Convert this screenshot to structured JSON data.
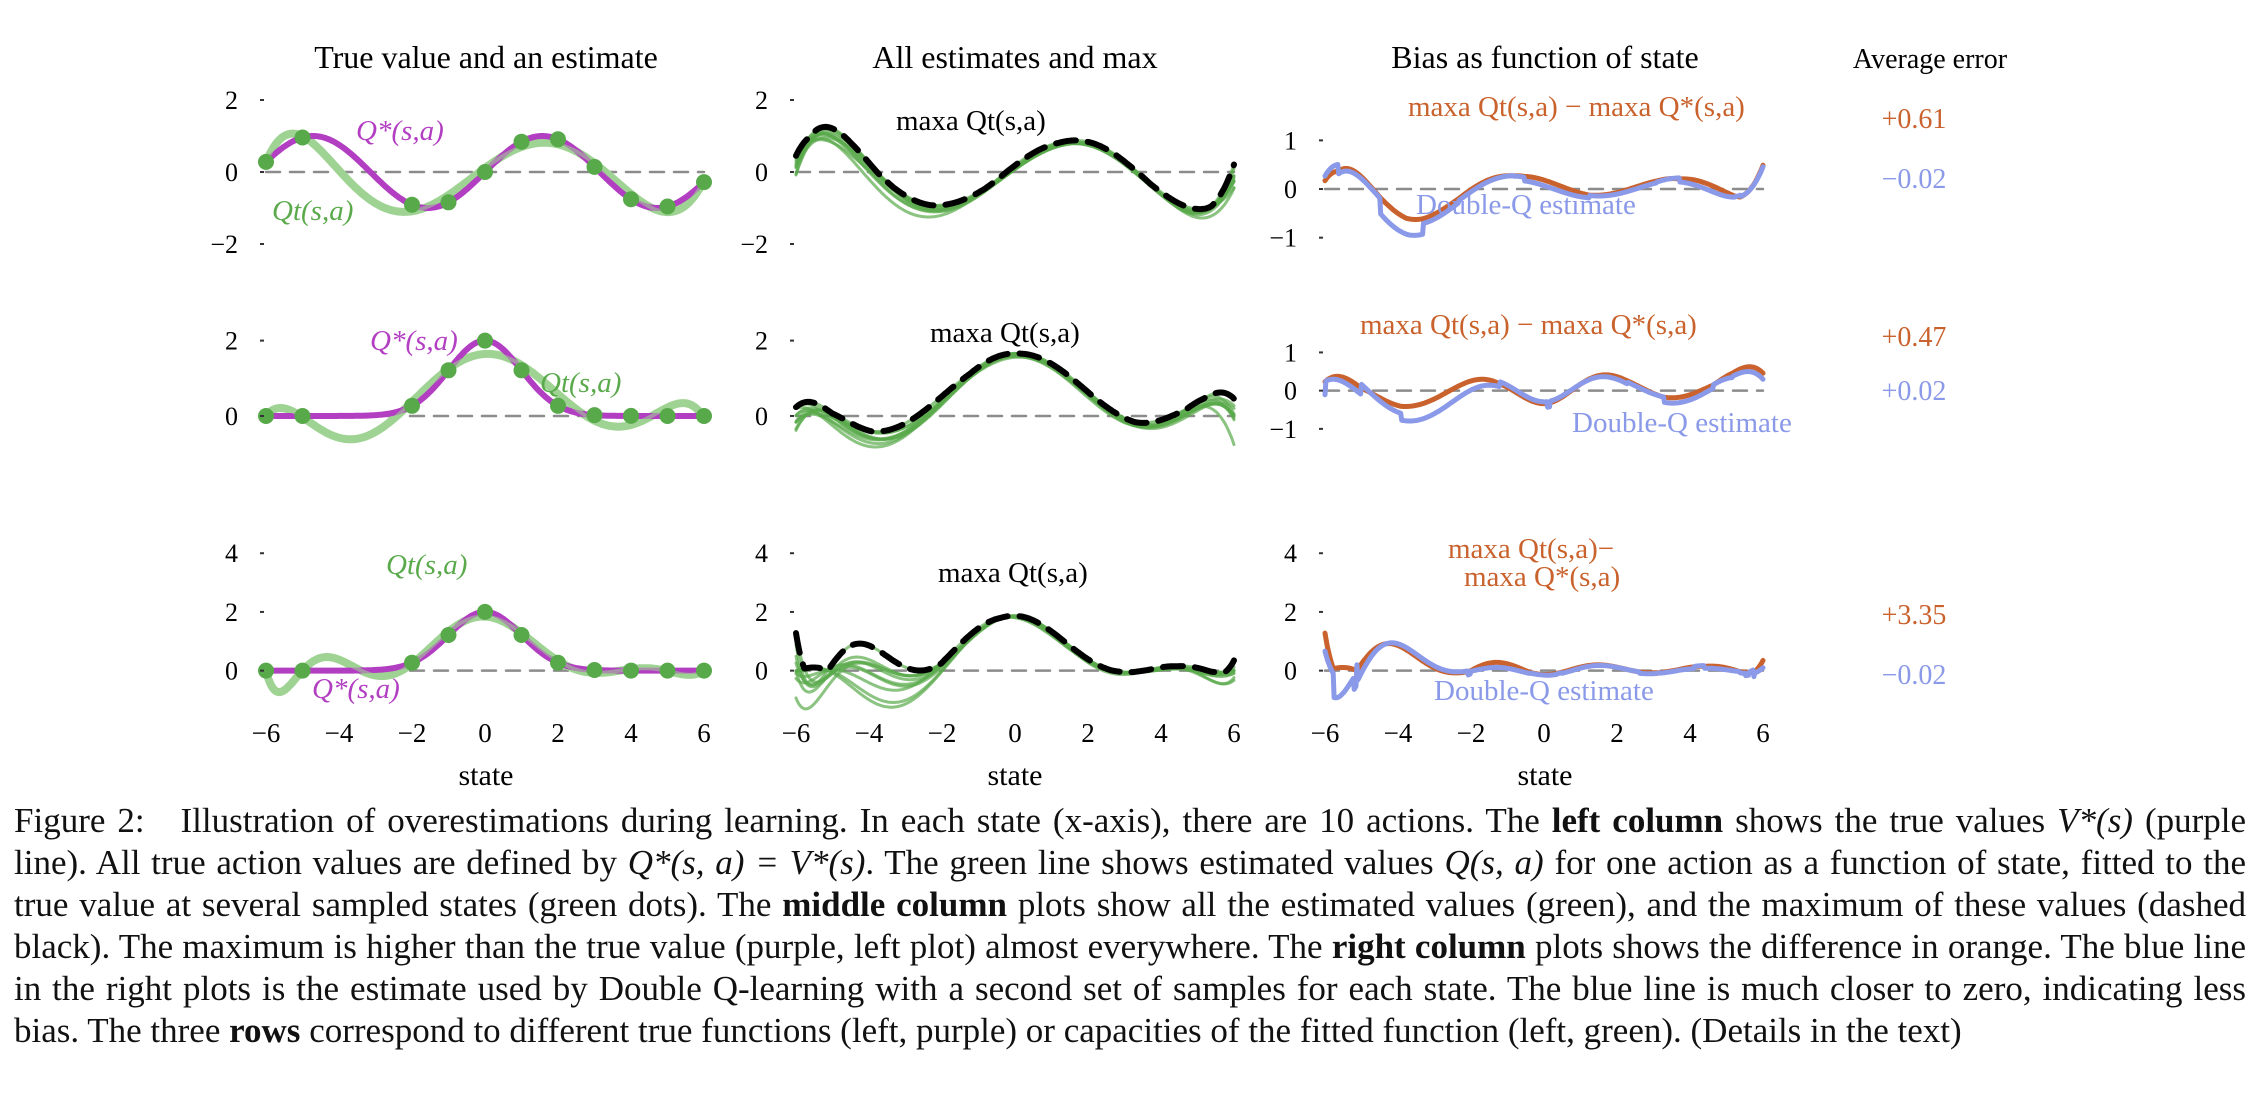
{
  "colors": {
    "purple": "#b23fc2",
    "green": "#5aaa4c",
    "green_light": "#9fd393",
    "green_dot": "#57a94a",
    "orange": "#c9622d",
    "blue": "#8a99e8",
    "black": "#000000",
    "zero_line": "#8c8c8c"
  },
  "column_titles": [
    "True value and an estimate",
    "All estimates and max",
    "Bias as function of state",
    "Average error"
  ],
  "xlabel": "state",
  "x_ticks": [
    "−6",
    "−4",
    "−2",
    "0",
    "2",
    "4",
    "6"
  ],
  "average_errors": [
    {
      "row": 1,
      "overestimate": "+0.61",
      "double_q": "−0.02"
    },
    {
      "row": 2,
      "overestimate": "+0.47",
      "double_q": "+0.02"
    },
    {
      "row": 3,
      "overestimate": "+3.35",
      "double_q": "−0.02"
    }
  ],
  "labels": {
    "q_true": "Q*(s,a)",
    "q_est": "Qt(s,a)",
    "max_est": "maxa Qt(s,a)",
    "diff": "maxa Qt(s,a) − maxa Q*(s,a)",
    "diff_line1": "maxa Qt(s,a)−",
    "diff_line2": "maxa Q*(s,a)",
    "double_q": "Double-Q estimate"
  },
  "chart_data": [
    {
      "type": "line",
      "row": 1,
      "column": "left",
      "title": "True value and an estimate",
      "xlabel": "state",
      "xlim": [
        -6,
        6
      ],
      "ylim": [
        -2.5,
        2.5
      ],
      "yticks": [
        "2",
        "0",
        "−2"
      ],
      "series": [
        {
          "name": "Q*(s,a)",
          "function": "sin(s)"
        },
        {
          "name": "Qt(s,a)",
          "description": "degree-6 polynomial fitted to sampled states"
        }
      ],
      "sample_states": [
        -6,
        -5,
        -2,
        -1,
        0,
        1,
        2,
        3,
        4,
        5,
        6
      ],
      "estimators": 10
    },
    {
      "type": "line",
      "row": 1,
      "column": "middle",
      "title": "All estimates and max",
      "xlim": [
        -6,
        6
      ],
      "ylim": [
        -2.5,
        2.5
      ],
      "yticks": [
        "2",
        "0",
        "−2"
      ],
      "series": [
        {
          "name": "estimates (10)"
        },
        {
          "name": "maxa Qt(s,a)"
        }
      ]
    },
    {
      "type": "line",
      "row": 1,
      "column": "right",
      "title": "Bias as function of state",
      "xlim": [
        -6,
        6
      ],
      "ylim": [
        -1.5,
        2
      ],
      "yticks": [
        "1",
        "0",
        "−1"
      ],
      "series": [
        {
          "name": "maxa Qt(s,a) − maxa Q*(s,a)"
        },
        {
          "name": "Double-Q estimate"
        }
      ],
      "average_error": {
        "overestimate": 0.61,
        "double_q": -0.02
      }
    },
    {
      "type": "line",
      "row": 2,
      "column": "left",
      "xlim": [
        -6,
        6
      ],
      "ylim": [
        -1,
        2.5
      ],
      "yticks": [
        "2",
        "0"
      ],
      "series": [
        {
          "name": "Q*(s,a)",
          "function": "2·exp(−s²/2)"
        },
        {
          "name": "Qt(s,a)",
          "description": "degree-6 polynomial fitted to sampled states"
        }
      ],
      "sample_states": [
        -6,
        -5,
        -2,
        -1,
        0,
        1,
        2,
        3,
        4,
        5,
        6
      ]
    },
    {
      "type": "line",
      "row": 2,
      "column": "middle",
      "xlim": [
        -6,
        6
      ],
      "ylim": [
        -1,
        2.5
      ],
      "yticks": [
        "2",
        "0"
      ],
      "series": [
        {
          "name": "estimates (10)"
        },
        {
          "name": "maxa Qt(s,a)"
        }
      ]
    },
    {
      "type": "line",
      "row": 2,
      "column": "right",
      "xlim": [
        -6,
        6
      ],
      "ylim": [
        -1.5,
        2
      ],
      "yticks": [
        "1",
        "0",
        "−1"
      ],
      "series": [
        {
          "name": "maxa Qt(s,a) − maxa Q*(s,a)"
        },
        {
          "name": "Double-Q estimate"
        }
      ],
      "average_error": {
        "overestimate": 0.47,
        "double_q": 0.02
      }
    },
    {
      "type": "line",
      "row": 3,
      "column": "left",
      "xlim": [
        -6,
        6
      ],
      "ylim": [
        -1,
        5
      ],
      "yticks": [
        "4",
        "2",
        "0"
      ],
      "series": [
        {
          "name": "Q*(s,a)",
          "function": "2·exp(−s²/2)"
        },
        {
          "name": "Qt(s,a)",
          "description": "degree-9 polynomial fitted to sampled states"
        }
      ],
      "sample_states": [
        -6,
        -5,
        -2,
        -1,
        0,
        1,
        2,
        3,
        4,
        5,
        6
      ]
    },
    {
      "type": "line",
      "row": 3,
      "column": "middle",
      "xlim": [
        -6,
        6
      ],
      "ylim": [
        -1,
        5
      ],
      "yticks": [
        "4",
        "2",
        "0"
      ],
      "series": [
        {
          "name": "estimates (10)"
        },
        {
          "name": "maxa Qt(s,a)"
        }
      ]
    },
    {
      "type": "line",
      "row": 3,
      "column": "right",
      "xlim": [
        -6,
        6
      ],
      "ylim": [
        -1,
        5
      ],
      "yticks": [
        "4",
        "2",
        "0"
      ],
      "series": [
        {
          "name": "maxa Qt(s,a) − maxa Q*(s,a)"
        },
        {
          "name": "Double-Q estimate"
        }
      ],
      "average_error": {
        "overestimate": 3.35,
        "double_q": -0.02
      }
    }
  ],
  "caption": {
    "p01": "Figure 2:",
    "p02": "Illustration of overestimations during learning. In each state (x-axis), there are 10 actions. The",
    "p03": "left column",
    "p04": "shows the true values",
    "p05": "V*(s)",
    "p06": "(purple line). All true action values are defined by",
    "p07": "Q*(s, a) = V*(s)",
    "p08": ". The green line shows estimated values",
    "p09": "Q(s, a)",
    "p10": "for one action as a function of state, fitted to the true value at several sampled states (green dots). The",
    "p11": "middle column",
    "p12": "plots show all the estimated values (green), and the maximum of these values (dashed black). The maximum is higher than the true value (purple, left plot) almost everywhere. The",
    "p13": "right column",
    "p14": "plots shows the difference in orange. The blue line in the right plots is the estimate used by Double Q-learning with a second set of samples for each state. The blue line is much closer to zero, indicating less bias. The three",
    "p15": "rows",
    "p16": "correspond to different true functions (left, purple) or capacities of the fitted function (left, green). (Details in the text)"
  }
}
